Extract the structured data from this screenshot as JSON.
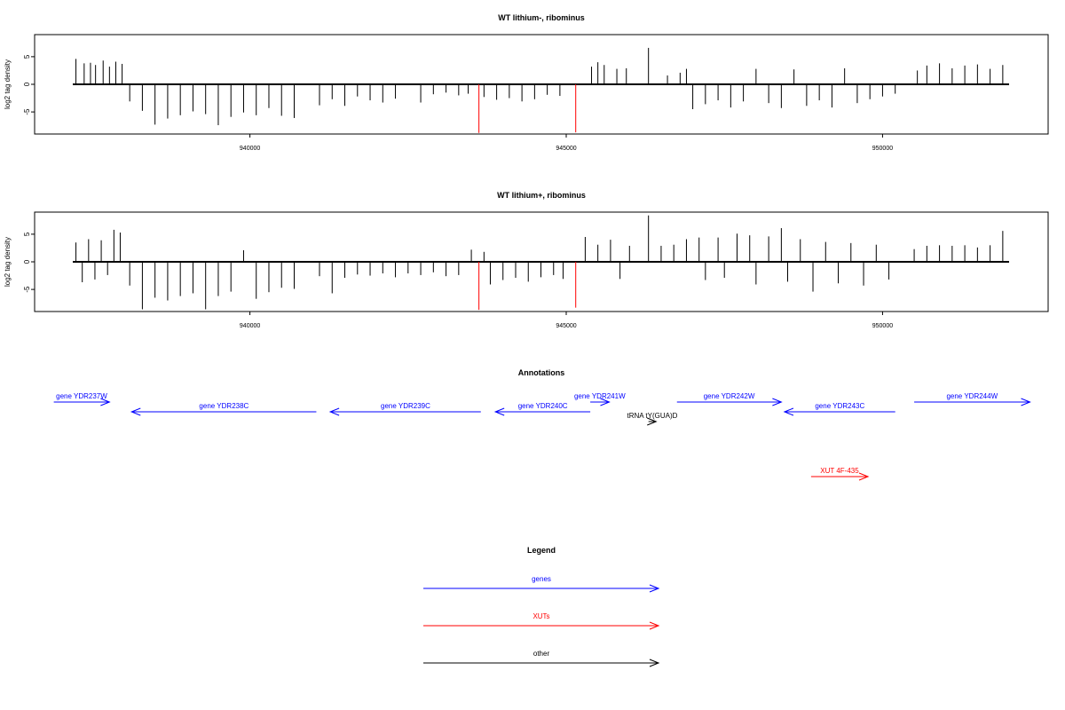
{
  "chart_data": [
    {
      "type": "bar",
      "title": "WT lithium-, ribominus",
      "ylabel": "log2 tag density",
      "xlim": [
        937200,
        952000
      ],
      "ylim": [
        -9,
        9
      ],
      "x_ticks": [
        940000,
        945000,
        950000
      ],
      "y_ticks": [
        -5,
        0,
        5
      ],
      "grid": false,
      "legend": "none",
      "series": [
        {
          "color": "#000000",
          "points": [
            [
              937250,
              4.6
            ],
            [
              937380,
              3.8
            ],
            [
              937480,
              3.9
            ],
            [
              937560,
              3.5
            ],
            [
              937680,
              4.3
            ],
            [
              937780,
              3.2
            ],
            [
              937880,
              4.1
            ],
            [
              937980,
              3.7
            ],
            [
              938100,
              -3.1
            ],
            [
              938300,
              -4.8
            ],
            [
              938500,
              -7.3
            ],
            [
              938700,
              -6.2
            ],
            [
              938900,
              -5.6
            ],
            [
              939100,
              -4.9
            ],
            [
              939300,
              -5.4
            ],
            [
              939500,
              -7.4
            ],
            [
              939700,
              -5.9
            ],
            [
              939900,
              -5.1
            ],
            [
              940100,
              -5.6
            ],
            [
              940300,
              -4.3
            ],
            [
              940500,
              -5.7
            ],
            [
              940700,
              -6.1
            ],
            [
              941100,
              -3.8
            ],
            [
              941300,
              -2.7
            ],
            [
              941500,
              -3.9
            ],
            [
              941700,
              -2.2
            ],
            [
              941900,
              -2.9
            ],
            [
              942100,
              -3.3
            ],
            [
              942300,
              -2.6
            ],
            [
              942700,
              -3.3
            ],
            [
              942900,
              -1.8
            ],
            [
              943100,
              -1.5
            ],
            [
              943300,
              -2.0
            ],
            [
              943450,
              -1.7
            ],
            [
              943700,
              -2.3
            ],
            [
              943900,
              -2.8
            ],
            [
              944100,
              -2.5
            ],
            [
              944300,
              -3.1
            ],
            [
              944500,
              -2.7
            ],
            [
              944700,
              -1.9
            ],
            [
              944900,
              -2.1
            ],
            [
              945400,
              3.2
            ],
            [
              945500,
              4.0
            ],
            [
              945600,
              3.5
            ],
            [
              945800,
              2.8
            ],
            [
              945950,
              2.9
            ],
            [
              946300,
              6.6
            ],
            [
              946600,
              1.6
            ],
            [
              946800,
              2.1
            ],
            [
              946900,
              2.8
            ],
            [
              947000,
              -4.5
            ],
            [
              947200,
              -3.6
            ],
            [
              947400,
              -2.9
            ],
            [
              947600,
              -4.2
            ],
            [
              947800,
              -3.1
            ],
            [
              948000,
              2.8
            ],
            [
              948200,
              -3.4
            ],
            [
              948400,
              -4.3
            ],
            [
              948600,
              2.7
            ],
            [
              948800,
              -3.9
            ],
            [
              949000,
              -2.9
            ],
            [
              949200,
              -4.2
            ],
            [
              949400,
              2.9
            ],
            [
              949600,
              -3.4
            ],
            [
              949800,
              -2.7
            ],
            [
              950000,
              -2.2
            ],
            [
              950200,
              -1.7
            ],
            [
              950550,
              2.5
            ],
            [
              950700,
              3.4
            ],
            [
              950900,
              3.8
            ],
            [
              951100,
              2.9
            ],
            [
              951300,
              3.4
            ],
            [
              951500,
              3.6
            ],
            [
              951700,
              2.8
            ],
            [
              951900,
              3.5
            ]
          ]
        },
        {
          "color": "#ff0000",
          "points": [
            [
              943620,
              -8.8
            ],
            [
              945150,
              -8.7
            ]
          ]
        }
      ]
    },
    {
      "type": "bar",
      "title": "WT lithium+, ribominus",
      "ylabel": "log2 tag density",
      "xlim": [
        937200,
        952000
      ],
      "ylim": [
        -9,
        9
      ],
      "x_ticks": [
        940000,
        945000,
        950000
      ],
      "y_ticks": [
        -5,
        0,
        5
      ],
      "grid": false,
      "legend": "none",
      "series": [
        {
          "color": "#000000",
          "points": [
            [
              937250,
              3.5
            ],
            [
              937350,
              -3.7
            ],
            [
              937450,
              4.1
            ],
            [
              937550,
              -3.2
            ],
            [
              937650,
              3.9
            ],
            [
              937750,
              -2.4
            ],
            [
              937850,
              5.8
            ],
            [
              937950,
              5.3
            ],
            [
              938100,
              -4.3
            ],
            [
              938300,
              -8.6
            ],
            [
              938500,
              -6.5
            ],
            [
              938700,
              -7.0
            ],
            [
              938900,
              -6.2
            ],
            [
              939100,
              -5.7
            ],
            [
              939300,
              -8.6
            ],
            [
              939500,
              -6.2
            ],
            [
              939700,
              -5.4
            ],
            [
              939900,
              2.1
            ],
            [
              940100,
              -6.7
            ],
            [
              940300,
              -5.5
            ],
            [
              940500,
              -4.7
            ],
            [
              940700,
              -4.9
            ],
            [
              941100,
              -2.6
            ],
            [
              941300,
              -5.7
            ],
            [
              941500,
              -2.9
            ],
            [
              941700,
              -2.3
            ],
            [
              941900,
              -2.5
            ],
            [
              942100,
              -2.1
            ],
            [
              942300,
              -2.8
            ],
            [
              942500,
              -2.1
            ],
            [
              942700,
              -2.4
            ],
            [
              942900,
              -1.9
            ],
            [
              943100,
              -2.6
            ],
            [
              943300,
              -2.4
            ],
            [
              943500,
              2.2
            ],
            [
              943700,
              1.8
            ],
            [
              943800,
              -4.1
            ],
            [
              944000,
              -3.3
            ],
            [
              944200,
              -2.9
            ],
            [
              944400,
              -3.6
            ],
            [
              944600,
              -2.8
            ],
            [
              944800,
              -2.4
            ],
            [
              944950,
              -3.1
            ],
            [
              945300,
              4.5
            ],
            [
              945500,
              3.1
            ],
            [
              945700,
              4.0
            ],
            [
              945850,
              -3.1
            ],
            [
              946000,
              2.9
            ],
            [
              946300,
              8.4
            ],
            [
              946500,
              2.9
            ],
            [
              946700,
              3.1
            ],
            [
              946900,
              4.1
            ],
            [
              947100,
              4.4
            ],
            [
              947200,
              -3.3
            ],
            [
              947400,
              4.4
            ],
            [
              947500,
              -2.9
            ],
            [
              947700,
              5.1
            ],
            [
              947900,
              4.8
            ],
            [
              948000,
              -4.1
            ],
            [
              948200,
              4.6
            ],
            [
              948400,
              6.1
            ],
            [
              948500,
              -3.6
            ],
            [
              948700,
              4.1
            ],
            [
              948900,
              -5.4
            ],
            [
              949100,
              3.6
            ],
            [
              949300,
              -3.9
            ],
            [
              949500,
              3.4
            ],
            [
              949700,
              -4.3
            ],
            [
              949900,
              3.1
            ],
            [
              950100,
              -3.2
            ],
            [
              950500,
              2.3
            ],
            [
              950700,
              2.9
            ],
            [
              950900,
              3.0
            ],
            [
              951100,
              2.9
            ],
            [
              951300,
              3.0
            ],
            [
              951500,
              2.6
            ],
            [
              951700,
              3.0
            ],
            [
              951900,
              5.6
            ]
          ]
        },
        {
          "color": "#ff0000",
          "points": [
            [
              943620,
              -8.7
            ],
            [
              945150,
              -8.3
            ]
          ]
        }
      ]
    }
  ],
  "annotations": {
    "title": "Annotations",
    "xlim": [
      937200,
      952000
    ],
    "features": [
      {
        "label": "gene YDR237W",
        "start": 936900,
        "end": 937780,
        "strand": "+",
        "row": 0,
        "color": "#0000ff"
      },
      {
        "label": "gene YDR238C",
        "start": 938130,
        "end": 941050,
        "strand": "-",
        "row": 1,
        "color": "#0000ff"
      },
      {
        "label": "gene YDR239C",
        "start": 941270,
        "end": 943650,
        "strand": "-",
        "row": 1,
        "color": "#0000ff"
      },
      {
        "label": "gene YDR240C",
        "start": 943880,
        "end": 945380,
        "strand": "-",
        "row": 1,
        "color": "#0000ff"
      },
      {
        "label": "gene YDR241W",
        "start": 945380,
        "end": 945680,
        "strand": "+",
        "row": 0,
        "color": "#0000ff"
      },
      {
        "label": "tRNA tY(GUA)D",
        "start": 946300,
        "end": 946420,
        "strand": "+",
        "row": 2,
        "color": "#000000"
      },
      {
        "label": "gene YDR242W",
        "start": 946750,
        "end": 948400,
        "strand": "+",
        "row": 0,
        "color": "#0000ff"
      },
      {
        "label": "gene YDR243C",
        "start": 948450,
        "end": 950200,
        "strand": "-",
        "row": 1,
        "color": "#0000ff"
      },
      {
        "label": "gene YDR244W",
        "start": 950500,
        "end": 952330,
        "strand": "+",
        "row": 0,
        "color": "#0000ff"
      },
      {
        "label": "XUT 4F-435",
        "start": 948870,
        "end": 949770,
        "strand": "+",
        "row": 3,
        "color": "#ff0000"
      }
    ]
  },
  "legend": {
    "title": "Legend",
    "items": [
      {
        "label": "genes",
        "color": "#0000ff"
      },
      {
        "label": "XUTs",
        "color": "#ff0000"
      },
      {
        "label": "other",
        "color": "#000000"
      }
    ]
  }
}
